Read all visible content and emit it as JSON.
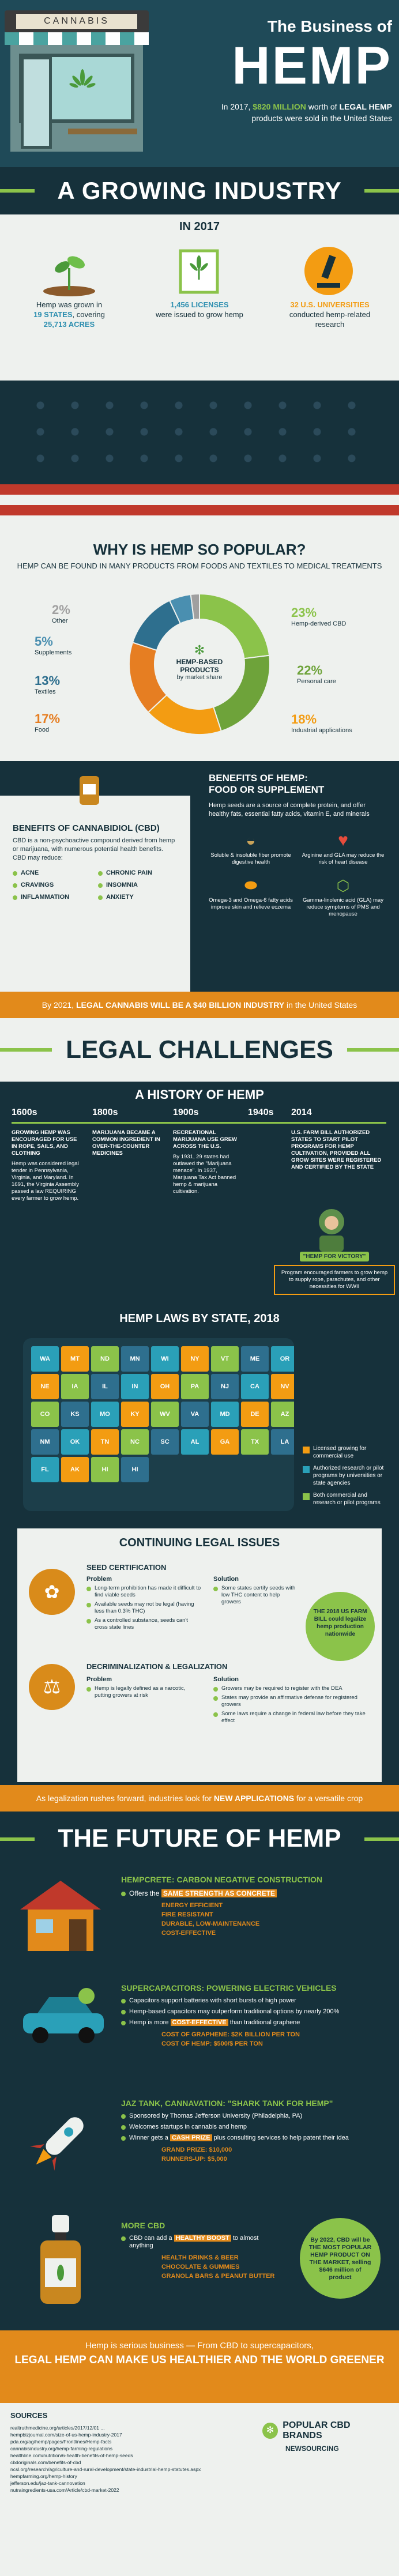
{
  "header": {
    "sign": "CANNABIS",
    "title_small": "The Business of",
    "title_big": "HEMP",
    "sub_pre": "In 2017,",
    "sub_amount": "$820 MILLION",
    "sub_mid": "worth of",
    "sub_bold": "LEGAL HEMP",
    "sub_post": "products were sold in the United States"
  },
  "growing": {
    "banner": "A GROWING INDUSTRY",
    "year": "IN 2017",
    "stats": [
      {
        "pre": "Hemp was grown in",
        "hl": "19 STATES",
        "post": ", covering",
        "hl2": "25,713 ACRES"
      },
      {
        "pre": "",
        "hl": "1,456 LICENSES",
        "post": "were issued to grow hemp",
        "hl2": ""
      },
      {
        "pre": "",
        "hl": "32 U.S. UNIVERSITIES",
        "post": "conducted hemp-related research",
        "hl2": ""
      }
    ]
  },
  "popular": {
    "title": "WHY IS HEMP SO POPULAR?",
    "subtitle": "HEMP CAN BE FOUND IN MANY PRODUCTS FROM FOODS AND TEXTILES TO MEDICAL TREATMENTS",
    "center": "HEMP-BASED PRODUCTS",
    "center_sub": "by market share",
    "left": [
      {
        "pct": "2%",
        "label": "Other"
      },
      {
        "pct": "5%",
        "label": "Supplements"
      },
      {
        "pct": "13%",
        "label": "Textiles"
      },
      {
        "pct": "17%",
        "label": "Food"
      }
    ],
    "right": [
      {
        "pct": "23%",
        "label": "Hemp-derived CBD"
      },
      {
        "pct": "22%",
        "label": "Personal care"
      },
      {
        "pct": "18%",
        "label": "Industrial applications"
      }
    ],
    "slices": [
      23,
      22,
      18,
      17,
      13,
      5,
      2
    ],
    "slice_colors": [
      "#8bc34a",
      "#6ea33a",
      "#f39c12",
      "#e67e22",
      "#2e6f8e",
      "#4a8fb0",
      "#a0a0a0"
    ]
  },
  "benefits": {
    "cbd_title": "BENEFITS OF CANNABIDIOL (CBD)",
    "cbd_desc": "CBD is a non-psychoactive compound derived from hemp or marijuana, with numerous potential health benefits. CBD may reduce:",
    "cbd_items": [
      "ACNE",
      "CHRONIC PAIN",
      "CRAVINGS",
      "INSOMNIA",
      "INFLAMMATION",
      "ANXIETY"
    ],
    "food_title": "BENEFITS OF HEMP:",
    "food_title2": "FOOD OR SUPPLEMENT",
    "food_desc": "Hemp seeds are a source of complete protein, and offer healthy fats, essential fatty acids, vitamin E, and minerals",
    "food_items": [
      "Soluble & insoluble fiber promote digestive health",
      "Arginine and GLA may reduce the risk of heart disease",
      "Omega-3 and Omega-6 fatty acids improve skin and relieve eczema",
      "Gamma-linolenic acid (GLA) may reduce symptoms of PMS and menopause"
    ]
  },
  "industry_bar": {
    "pre": "By 2021,",
    "hl": "LEGAL CANNABIS WILL BE A $40 BILLION INDUSTRY",
    "post": "in the United States"
  },
  "legal": {
    "banner": "LEGAL CHALLENGES",
    "history_title": "A HISTORY OF HEMP",
    "timeline": [
      {
        "year": "1600s",
        "head": "GROWING HEMP WAS ENCOURAGED FOR USE IN ROPE, SAILS, AND CLOTHING",
        "body": "Hemp was considered legal tender in Pennsylvania, Virginia, and Maryland. In 1691, the Virginia Assembly passed a law REQUIRING every farmer to grow hemp."
      },
      {
        "year": "1800s",
        "head": "MARIJUANA BECAME A COMMON INGREDIENT IN OVER-THE-COUNTER MEDICINES",
        "body": "As a controlled substance, seeds can't cross state lines"
      },
      {
        "year": "1900s",
        "head": "RECREATIONAL MARIJUANA USE GREW ACROSS THE U.S.",
        "body": "By 1931, 29 states had outlawed the \"Marijuana menace\". In 1937, Marijuana Tax Act banned hemp & marijuana cultivation."
      },
      {
        "year": "1940s",
        "head": "",
        "body": ""
      },
      {
        "year": "2014",
        "head": "U.S. FARM BILL AUTHORIZED STATES TO START PILOT PROGRAMS FOR HEMP CULTIVATION, PROVIDED ALL GROW SITES WERE REGISTERED AND CERTIFIED BY THE STATE",
        "body": ""
      }
    ],
    "victory_badge": "\"HEMP FOR VICTORY\"",
    "victory_text": "Program encouraged farmers to grow hemp to supply rope, parachutes, and other necessities for WWII",
    "laws_title": "HEMP LAWS BY STATE, 2018",
    "legend": [
      {
        "label": "Licensed growing for commercial use",
        "color": "#f39c12"
      },
      {
        "label": "Authorized research or pilot programs by universities or state agencies",
        "color": "#2aa0b8"
      },
      {
        "label": "Both commercial and research or pilot programs",
        "color": "#8bc34a"
      }
    ],
    "states": [
      "WA",
      "MT",
      "ND",
      "MN",
      "WI",
      "NY",
      "VT",
      "ME",
      "OR",
      "NE",
      "IA",
      "IL",
      "IN",
      "OH",
      "PA",
      "NJ",
      "CA",
      "NV",
      "CO",
      "KS",
      "MO",
      "KY",
      "WV",
      "VA",
      "MD",
      "DE",
      "AZ",
      "NM",
      "OK",
      "TN",
      "NC",
      "SC",
      "AL",
      "GA",
      "TX",
      "LA",
      "FL",
      "AK",
      "HI",
      "HI"
    ]
  },
  "issues": {
    "title": "CONTINUING LEGAL ISSUES",
    "seed_title": "SEED CERTIFICATION",
    "seed_problem_label": "Problem",
    "seed_problems": [
      "Long-term prohibition has made it difficult to find viable seeds",
      "Available seeds may not be legal (having less than 0.3% THC)",
      "As a controlled substance, seeds can't cross state lines"
    ],
    "seed_solution_label": "Solution",
    "seed_solutions": [
      "Some states certify seeds with low THC content to help growers"
    ],
    "farm_badge": "THE 2018 US FARM BILL could legalize hemp production nationwide",
    "decrim_title": "DECRIMINALIZATION & LEGALIZATION",
    "decrim_problem_label": "Problem",
    "decrim_problems": [
      "Hemp is legally defined as a narcotic, putting growers at risk"
    ],
    "decrim_solution_label": "Solution",
    "decrim_solutions": [
      "Growers may be required to register with the DEA",
      "States may provide an affirmative defense for registered growers",
      "Some laws require a change in federal law before they take effect"
    ]
  },
  "future_bar": {
    "pre": "As legalization rushes forward, industries look for",
    "hl": "NEW APPLICATIONS",
    "post": "for a versatile crop"
  },
  "future": {
    "banner": "THE FUTURE OF HEMP",
    "items": [
      {
        "title": "HEMPCRETE: CARBON NEGATIVE CONSTRUCTION",
        "lead_pre": "Offers the",
        "lead_hl": "SAME STRENGTH AS CONCRETE",
        "subs": [
          "ENERGY EFFICIENT",
          "FIRE RESISTANT",
          "DURABLE, LOW-MAINTENANCE",
          "COST-EFFECTIVE"
        ]
      },
      {
        "title": "SUPERCAPACITORS: POWERING ELECTRIC VEHICLES",
        "lines": [
          "Capacitors support batteries with short bursts of high power",
          "Hemp-based capacitors may outperform traditional options by nearly 200%"
        ],
        "lead_pre": "Hemp is more",
        "lead_hl": "COST-EFFECTIVE",
        "lead_post": "than traditional graphene",
        "subs": [
          "COST OF GRAPHENE: $2K BILLION PER TON",
          "COST OF HEMP: $500/$ PER TON"
        ]
      },
      {
        "title": "JAZ TANK, CANNAVATION: \"SHARK TANK FOR HEMP\"",
        "lines": [
          "Sponsored by Thomas Jefferson University (Philadelphia, PA)",
          "Welcomes startups in cannabis and hemp"
        ],
        "lead_pre": "Winner gets a",
        "lead_hl": "CASH PRIZE",
        "lead_post": "plus consulting services to help patent their idea",
        "subs": [
          "GRAND PRIZE: $10,000",
          "RUNNERS-UP: $5,000"
        ]
      },
      {
        "title": "MORE CBD",
        "lead_pre": "CBD can add a",
        "lead_hl": "HEALTHY BOOST",
        "lead_post": "to almost anything",
        "subs": [
          "HEALTH DRINKS & BEER",
          "CHOCOLATE & GUMMIES",
          "GRANOLA BARS & PEANUT BUTTER"
        ],
        "badge": "By 2022, CBD will be THE MOST POPULAR HEMP PRODUCT ON THE MARKET, selling $646 million of product"
      }
    ]
  },
  "footer": {
    "line1": "Hemp is serious business — From CBD to supercapacitors,",
    "line2": "LEGAL HEMP CAN MAKE US HEALTHIER AND THE WORLD GREENER",
    "sources_title": "SOURCES",
    "sources": [
      "realtruthmedicine.org/articles/2017/12/01 ...",
      "hempbizjournal.com/size-of-us-hemp-industry-2017",
      "pda.org/ag/hemp/pages/Frontlines/Hemp-facts",
      "cannabisindustry.org/hemp-farming-regulations",
      "healthline.com/nutrition/6-health-benefits-of-hemp-seeds",
      "cbdoriginals.com/benefits-of-cbd",
      "ncsl.org/research/agriculture-and-rural-development/state-industrial-hemp-statutes.aspx",
      "hempfarming.org/hemp-history",
      "jefferson.edu/jaz-tank-cannovation",
      "nutraingredients-usa.com/Article/cbd-market-2022"
    ],
    "brand": "POPULAR CBD BRANDS",
    "brand2": "NEWSOURCING"
  }
}
